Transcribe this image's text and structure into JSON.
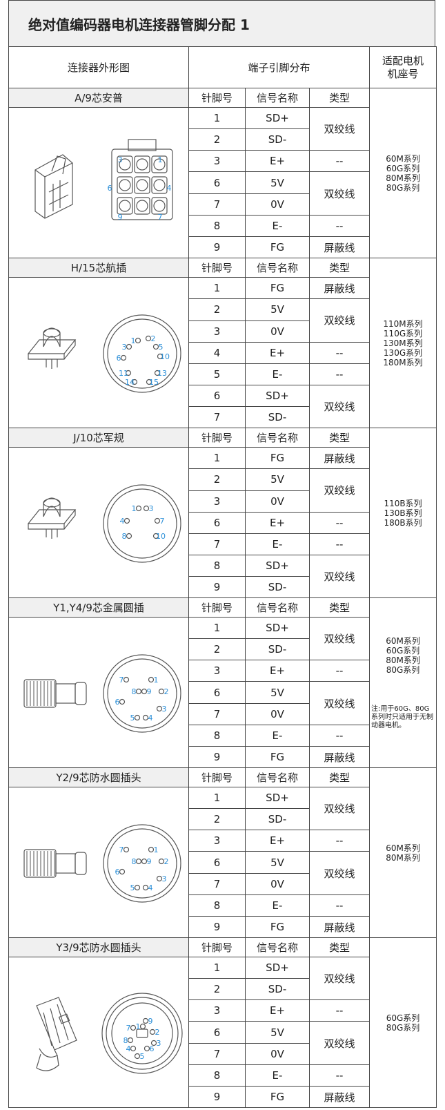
{
  "title": "绝对值编码器电机连接器管脚分配 1",
  "table": {
    "headers": [
      "连接器外形图",
      "端子引脚分布",
      "适配电机机座号"
    ],
    "sections": [
      {
        "connector": "A/9芯安普",
        "columns": [
          "针脚号",
          "信号名称",
          "类型"
        ],
        "rows": [
          {
            "pin": "1",
            "signal": "SD+",
            "type": "双绞线"
          },
          {
            "pin": "2",
            "signal": "SD-",
            "type": null
          },
          {
            "pin": "3",
            "signal": "E+",
            "type": "--"
          },
          {
            "pin": "6",
            "signal": "5V",
            "type": "双绞线"
          },
          {
            "pin": "7",
            "signal": "0V",
            "type": null
          },
          {
            "pin": "8",
            "signal": "E-",
            "type": "--"
          },
          {
            "pin": "9",
            "signal": "FG",
            "type": "屏蔽线"
          }
        ],
        "models": [
          "60M系列",
          "60G系列",
          "80M系列",
          "80G系列"
        ],
        "pin_labels": [
          "3",
          "1",
          "6",
          "4",
          "9",
          "7"
        ]
      },
      {
        "connector": "H/15芯航插",
        "columns": [
          "针脚号",
          "信号名称",
          "类型"
        ],
        "rows": [
          {
            "pin": "1",
            "signal": "FG",
            "type": "屏蔽线"
          },
          {
            "pin": "2",
            "signal": "5V",
            "type": "双绞线"
          },
          {
            "pin": "3",
            "signal": "0V",
            "type": null
          },
          {
            "pin": "4",
            "signal": "E+",
            "type": "--"
          },
          {
            "pin": "5",
            "signal": "E-",
            "type": "--"
          },
          {
            "pin": "6",
            "signal": "SD+",
            "type": "双绞线"
          },
          {
            "pin": "7",
            "signal": "SD-",
            "type": null
          }
        ],
        "models": [
          "110M系列",
          "110G系列",
          "130M系列",
          "130G系列",
          "180M系列"
        ],
        "pin_labels": [
          "1",
          "2",
          "3",
          "5",
          "6",
          "10",
          "11",
          "13",
          "14",
          "15"
        ]
      },
      {
        "connector": "J/10芯军规",
        "columns": [
          "针脚号",
          "信号名称",
          "类型"
        ],
        "rows": [
          {
            "pin": "1",
            "signal": "FG",
            "type": "屏蔽线"
          },
          {
            "pin": "2",
            "signal": "5V",
            "type": "双绞线"
          },
          {
            "pin": "3",
            "signal": "0V",
            "type": null
          },
          {
            "pin": "6",
            "signal": "E+",
            "type": "--"
          },
          {
            "pin": "7",
            "signal": "E-",
            "type": "--"
          },
          {
            "pin": "8",
            "signal": "SD+",
            "type": "双绞线"
          },
          {
            "pin": "9",
            "signal": "SD-",
            "type": null
          }
        ],
        "models": [
          "110B系列",
          "130B系列",
          "180B系列"
        ],
        "pin_labels": [
          "1",
          "3",
          "4",
          "7",
          "8",
          "10"
        ]
      },
      {
        "connector": "Y1,Y4/9芯金属圆插",
        "columns": [
          "针脚号",
          "信号名称",
          "类型"
        ],
        "rows": [
          {
            "pin": "1",
            "signal": "SD+",
            "type": "双绞线"
          },
          {
            "pin": "2",
            "signal": "SD-",
            "type": null
          },
          {
            "pin": "3",
            "signal": "E+",
            "type": "--"
          },
          {
            "pin": "6",
            "signal": "5V",
            "type": "双绞线"
          },
          {
            "pin": "7",
            "signal": "0V",
            "type": null
          },
          {
            "pin": "8",
            "signal": "E-",
            "type": "--"
          },
          {
            "pin": "9",
            "signal": "FG",
            "type": "屏蔽线"
          }
        ],
        "models": [
          "60M系列",
          "60G系列",
          "80M系列",
          "80G系列"
        ],
        "note": "注:用于60G、80G系列时只适用于无制动器电机。",
        "pin_labels": [
          "7",
          "1",
          "8",
          "9",
          "2",
          "6",
          "3",
          "5",
          "4"
        ]
      },
      {
        "connector": "Y2/9芯防水圆插头",
        "columns": [
          "针脚号",
          "信号名称",
          "类型"
        ],
        "rows": [
          {
            "pin": "1",
            "signal": "SD+",
            "type": "双绞线"
          },
          {
            "pin": "2",
            "signal": "SD-",
            "type": null
          },
          {
            "pin": "3",
            "signal": "E+",
            "type": "--"
          },
          {
            "pin": "6",
            "signal": "5V",
            "type": "双绞线"
          },
          {
            "pin": "7",
            "signal": "0V",
            "type": null
          },
          {
            "pin": "8",
            "signal": "E-",
            "type": "--"
          },
          {
            "pin": "9",
            "signal": "FG",
            "type": "屏蔽线"
          }
        ],
        "models": [
          "60M系列",
          "80M系列"
        ],
        "pin_labels": [
          "7",
          "1",
          "8",
          "9",
          "2",
          "6",
          "3",
          "5",
          "4"
        ]
      },
      {
        "connector": "Y3/9芯防水圆插头",
        "columns": [
          "针脚号",
          "信号名称",
          "类型"
        ],
        "rows": [
          {
            "pin": "1",
            "signal": "SD+",
            "type": "双绞线"
          },
          {
            "pin": "2",
            "signal": "SD-",
            "type": null
          },
          {
            "pin": "3",
            "signal": "E+",
            "type": "--"
          },
          {
            "pin": "6",
            "signal": "5V",
            "type": "双绞线"
          },
          {
            "pin": "7",
            "signal": "0V",
            "type": null
          },
          {
            "pin": "8",
            "signal": "E-",
            "type": "--"
          },
          {
            "pin": "9",
            "signal": "FG",
            "type": "屏蔽线"
          }
        ],
        "models": [
          "60G系列",
          "80G系列"
        ],
        "pin_labels": [
          "9",
          "7",
          "1",
          "2",
          "8",
          "4",
          "5",
          "6",
          "3"
        ]
      }
    ]
  }
}
